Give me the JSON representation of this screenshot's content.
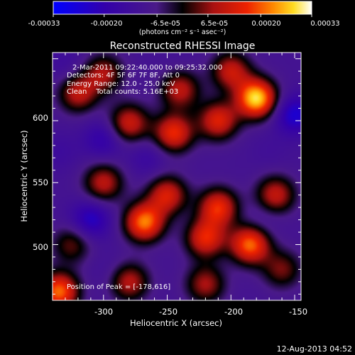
{
  "colorbar": {
    "ticks": [
      "-0.00033",
      "-0.00020",
      "-6.5e-05",
      "6.5e-05",
      "0.00020",
      "0.00033"
    ],
    "tick_values": [
      -0.00033,
      -0.0002,
      -6.5e-05,
      6.5e-05,
      0.0002,
      0.00033
    ],
    "range": [
      -0.00033,
      0.00033
    ],
    "units": "(photons cm⁻² s⁻¹ asec⁻²)"
  },
  "chart_data": {
    "type": "heatmap",
    "title": "Reconstructed RHESSI Image",
    "xlabel": "Heliocentric X (arcsec)",
    "ylabel": "Heliocentric Y (arcsec)",
    "xlim": [
      -340,
      -145
    ],
    "ylim": [
      455,
      655
    ],
    "x_ticks": [
      "-300",
      "-250",
      "-200",
      "-150"
    ],
    "x_tick_values": [
      -300,
      -250,
      -200,
      -150
    ],
    "y_ticks": [
      "500",
      "550",
      "600"
    ],
    "y_tick_values": [
      500,
      550,
      600
    ],
    "info_lines": [
      "2-Mar-2011 09:22:40.000 to 09:25:32.000",
      "Detectors: 4F 5F 6F 7F 8F, Att 0",
      "Energy Range: 12.0 - 25.0 keV",
      "Clean    Total counts: 5.16E+03"
    ],
    "peak_label": "Position of Peak = [-178,616]",
    "peak": [
      -178,
      616
    ],
    "blobs": [
      {
        "x": -180,
        "y": 618,
        "v": 0.00033
      },
      {
        "x": -268,
        "y": 518,
        "v": 0.00026
      },
      {
        "x": -185,
        "y": 500,
        "v": 0.00025
      },
      {
        "x": -320,
        "y": 622,
        "v": 0.00014
      },
      {
        "x": -245,
        "y": 590,
        "v": 0.0002
      },
      {
        "x": -210,
        "y": 600,
        "v": 0.00018
      },
      {
        "x": -280,
        "y": 598,
        "v": 0.00016
      },
      {
        "x": -300,
        "y": 550,
        "v": 0.00014
      },
      {
        "x": -210,
        "y": 530,
        "v": 0.0002
      },
      {
        "x": -250,
        "y": 540,
        "v": 0.00017
      },
      {
        "x": -165,
        "y": 540,
        "v": 0.00015
      },
      {
        "x": -220,
        "y": 505,
        "v": 0.00019
      },
      {
        "x": -200,
        "y": 640,
        "v": 0.00015
      },
      {
        "x": -240,
        "y": 625,
        "v": 0.00014
      },
      {
        "x": -300,
        "y": 638,
        "v": 0.00012
      },
      {
        "x": -280,
        "y": 470,
        "v": 0.00014
      },
      {
        "x": -220,
        "y": 468,
        "v": 0.00012
      },
      {
        "x": -335,
        "y": 462,
        "v": 0.00025
      },
      {
        "x": -160,
        "y": 480,
        "v": 9e-05
      },
      {
        "x": -325,
        "y": 500,
        "v": 8e-05
      },
      {
        "x": -310,
        "y": 520,
        "v": -0.0002
      },
      {
        "x": -300,
        "y": 585,
        "v": -0.00016
      },
      {
        "x": -150,
        "y": 605,
        "v": -0.00022
      },
      {
        "x": -175,
        "y": 520,
        "v": -0.0001
      },
      {
        "x": -265,
        "y": 570,
        "v": -0.00012
      },
      {
        "x": -330,
        "y": 645,
        "v": -0.0001
      },
      {
        "x": -170,
        "y": 575,
        "v": -8e-05
      },
      {
        "x": -295,
        "y": 478,
        "v": -9e-05
      },
      {
        "x": -245,
        "y": 648,
        "v": -7e-05
      },
      {
        "x": -200,
        "y": 570,
        "v": -6e-05
      },
      {
        "x": -335,
        "y": 575,
        "v": -0.0001
      }
    ]
  },
  "timestamp": "12-Aug-2013 04:52"
}
